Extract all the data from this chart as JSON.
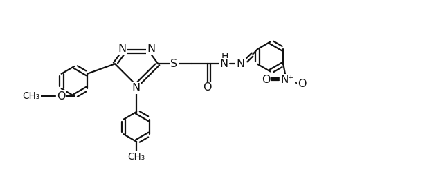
{
  "bg_color": "#ffffff",
  "line_color": "#111111",
  "line_width": 1.6,
  "font_size": 11.5,
  "figsize": [
    6.4,
    2.59
  ],
  "dpi": 100,
  "xlim": [
    0.0,
    10.5
  ],
  "ylim": [
    0.2,
    4.5
  ]
}
